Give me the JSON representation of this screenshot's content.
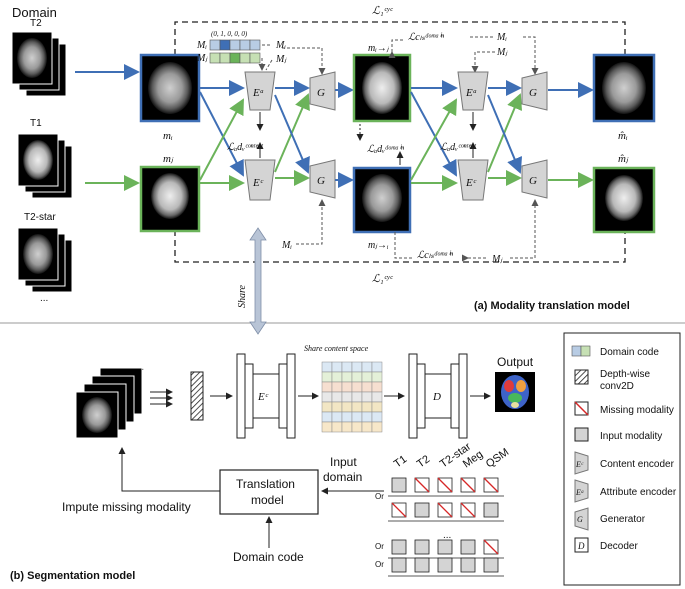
{
  "domains": {
    "header": "Domain",
    "items": [
      "T2",
      "T1",
      "T2-star",
      "..."
    ]
  },
  "top": {
    "title": "(a) Modality translation model",
    "loss_cyc_top": "ℒ₁ᶜʸᶜ",
    "loss_cyc_bottom": "ℒ₁ᶜʸᶜ",
    "code_vector": "(0, 1, 0, 0, 0)",
    "mi_code": "Mᵢ",
    "mj_code": "Mⱼ",
    "mi_label": "mᵢ",
    "mj_label": "mⱼ",
    "ea_label": "Eᵃ",
    "ec_label": "Eᶜ",
    "g_label": "G",
    "loss_adv_content_1": "ℒₐdᵥᶜᵒⁿᵗᵉⁿᵗ",
    "loss_adv_content_2": "ℒₐdᵥᶜᵒⁿᵗᵉⁿᵗ",
    "loss_adv_domain": "ℒₐdᵥᵈᵒᵐᵃⁱⁿ",
    "loss_cls_domain_top": "ℒcₗₛᵈᵒᵐᵃⁱⁿ",
    "loss_cls_domain_bottom": "ℒcₗₛᵈᵒᵐᵃⁱⁿ",
    "m_i_to_j": "mᵢ→ⱼ",
    "m_j_to_i": "mⱼ→ᵢ",
    "mi_hat": "m̂ᵢ",
    "mj_hat": "m̂ⱼ",
    "share_label": "Share"
  },
  "bottom": {
    "title": "(b) Segmentation model",
    "ellipsis": "...",
    "share_content": "Share content space",
    "ec_label": "Eᶜ",
    "d_label": "D",
    "output": "Output",
    "translation_line1": "Translation",
    "translation_line2": "model",
    "input_domain_line1": "Input",
    "input_domain_line2": "domain",
    "impute": "Impute missing modality",
    "domain_code": "Domain code",
    "modalities": [
      "T1",
      "T2",
      "T2-star",
      "Meg",
      "QSM"
    ],
    "or_labels": [
      "Or",
      "Or",
      "Or"
    ],
    "grid_ellipsis": "..."
  },
  "legend": {
    "items": [
      "Domain code",
      "Depth-wise conv2D",
      "Missing modality",
      "Input modality",
      "Content encoder",
      "Attribute encoder",
      "Generator",
      "Decoder"
    ],
    "depth_line1": "Depth-wise",
    "depth_line2": "conv2D",
    "ec_symbol": "Eᶜ",
    "ea_symbol": "Eᵃ",
    "g_symbol": "G",
    "d_symbol": "D"
  },
  "colors": {
    "blue": "#3f6fb5",
    "green": "#6bb35a",
    "gray_block": "#d4d4d4",
    "share_arrow": "#b8c4d6",
    "missing": "#d62828"
  }
}
